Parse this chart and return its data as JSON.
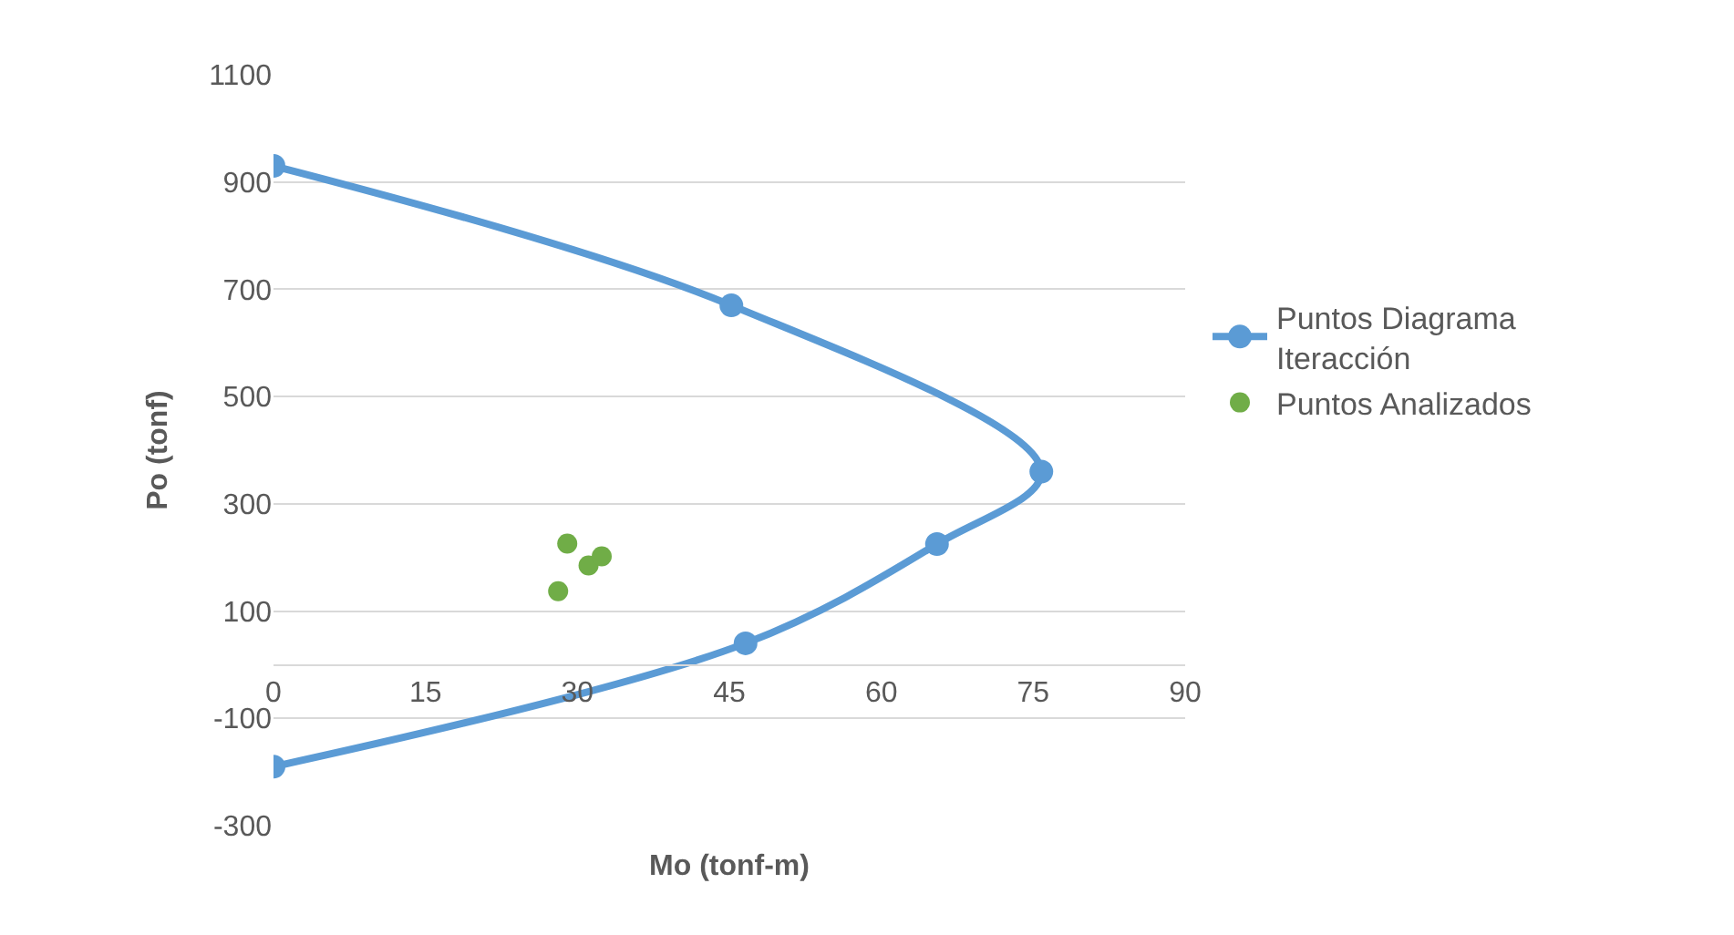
{
  "chart_data": {
    "type": "scatter",
    "xlabel": "Mo (tonf-m)",
    "ylabel": "Po (tonf)",
    "xlim": [
      0,
      90
    ],
    "xticks": [
      0,
      15,
      30,
      45,
      60,
      75,
      90
    ],
    "ylim": [
      -300,
      1100
    ],
    "yticks": [
      -300,
      -100,
      100,
      300,
      500,
      700,
      900,
      1100
    ],
    "grid": "y",
    "legend": "right",
    "marker": "circle",
    "series": [
      {
        "name": "Puntos Diagrama Iteracción",
        "type": "line",
        "color": "#5b9bd5",
        "x": [
          0,
          45.2,
          75.8,
          65.5,
          46.6,
          0
        ],
        "values": [
          930,
          670,
          360,
          225,
          40,
          -190
        ]
      },
      {
        "name": "Puntos Analizados",
        "type": "scatter",
        "color": "#70ad47",
        "x": [
          29,
          28.1,
          31.1,
          32.4
        ],
        "values": [
          226,
          137,
          185,
          202
        ]
      }
    ]
  }
}
